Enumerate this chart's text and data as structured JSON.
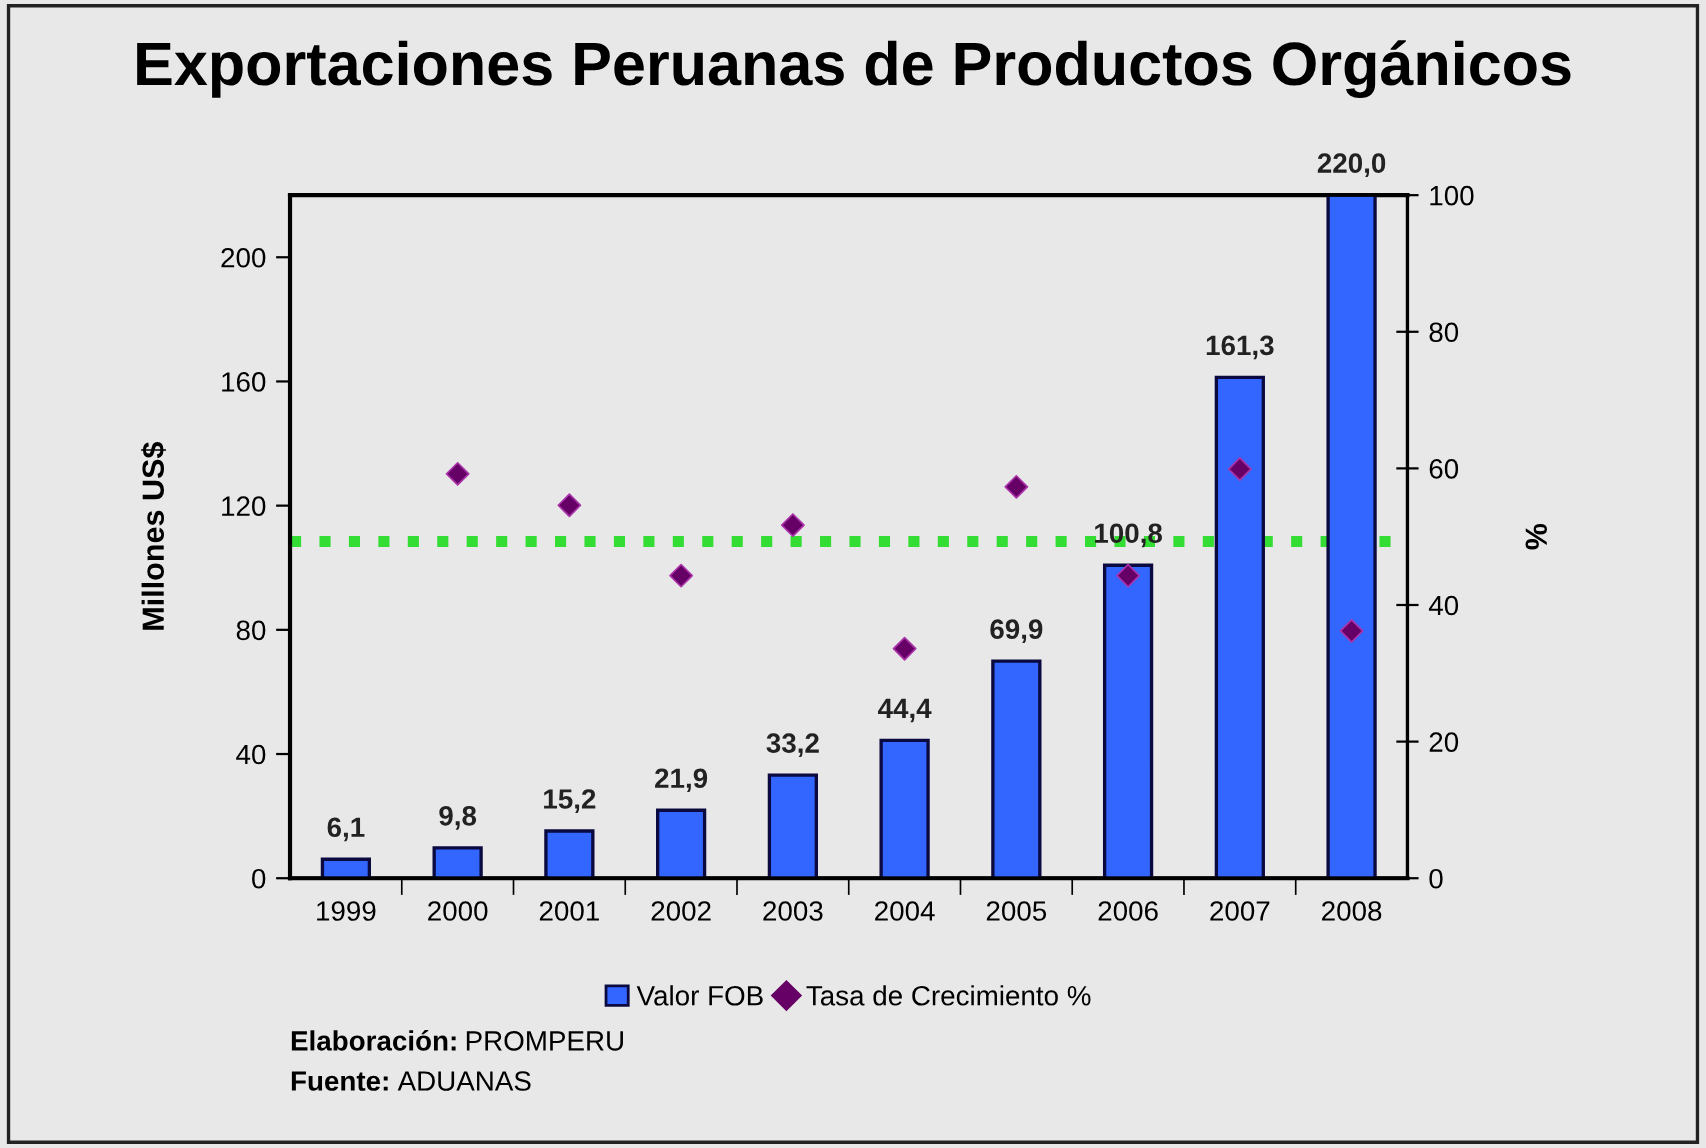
{
  "chart_data": {
    "type": "bar",
    "title": "Exportaciones Peruanas de Productos Orgánicos",
    "ylabel": "Millones US$",
    "y2label": "%",
    "categories": [
      "1999",
      "2000",
      "2001",
      "2002",
      "2003",
      "2004",
      "2005",
      "2006",
      "2007",
      "2008"
    ],
    "series": [
      {
        "name": "Valor FOB",
        "color": "#3366ff",
        "values": [
          6.1,
          9.8,
          15.2,
          21.9,
          33.2,
          44.4,
          69.9,
          100.8,
          161.3,
          220.0
        ],
        "value_labels": [
          "6,1",
          "9,8",
          "15,2",
          "21,9",
          "33,2",
          "44,4",
          "69,9",
          "100,8",
          "161,3",
          "220,0"
        ]
      },
      {
        "name": "Tasa de Crecimiento %",
        "type": "scatter",
        "axis": "y2",
        "marker": "diamond",
        "color": "#660066",
        "values": [
          null,
          59.2,
          54.6,
          44.3,
          51.7,
          33.6,
          57.3,
          44.3,
          59.9,
          36.2
        ]
      }
    ],
    "ylim": [
      0,
      220
    ],
    "yticks": [
      0,
      40,
      80,
      120,
      160,
      200
    ],
    "y2lim": [
      0,
      100
    ],
    "y2ticks": [
      0,
      20,
      40,
      60,
      80,
      100
    ],
    "ref_lines": [
      {
        "axis": "y2",
        "value": 49.3,
        "color": "#33dd33",
        "line_style": "dotted"
      }
    ],
    "grid": false,
    "legend": "bottom",
    "annotations": [
      "Elaboración: PROMPERU",
      "Fuente: ADUANAS"
    ]
  }
}
